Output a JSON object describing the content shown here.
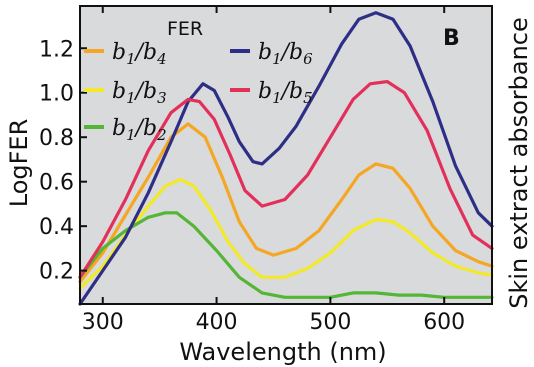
{
  "chart_data": {
    "type": "line",
    "panel_label": "B",
    "legend_title": "FER",
    "xlabel": "Wavelength (nm)",
    "ylabel": "LogFER",
    "right_label": "Skin extract absorbance",
    "xlim": [
      280,
      642
    ],
    "ylim": [
      0.05,
      1.39
    ],
    "x_ticks": [
      300,
      400,
      500,
      600
    ],
    "y_ticks": [
      0.2,
      0.4,
      0.6,
      0.8,
      1.0,
      1.2
    ],
    "y_tick_labels": [
      "0.2",
      "0.4",
      "0.6",
      "0.8",
      "1.0",
      "1.2"
    ],
    "background": "#d8dadb",
    "series": [
      {
        "name_num": "1",
        "name_den": "4",
        "color": "#f5a623",
        "legend": "top-left-1",
        "points": [
          [
            280,
            0.15
          ],
          [
            300,
            0.28
          ],
          [
            320,
            0.45
          ],
          [
            340,
            0.62
          ],
          [
            360,
            0.8
          ],
          [
            375,
            0.86
          ],
          [
            390,
            0.8
          ],
          [
            405,
            0.62
          ],
          [
            420,
            0.42
          ],
          [
            435,
            0.3
          ],
          [
            450,
            0.27
          ],
          [
            470,
            0.3
          ],
          [
            490,
            0.38
          ],
          [
            510,
            0.52
          ],
          [
            525,
            0.63
          ],
          [
            540,
            0.68
          ],
          [
            555,
            0.66
          ],
          [
            570,
            0.57
          ],
          [
            590,
            0.4
          ],
          [
            610,
            0.29
          ],
          [
            630,
            0.24
          ],
          [
            642,
            0.22
          ]
        ]
      },
      {
        "name_num": "1",
        "name_den": "3",
        "color": "#f2e928",
        "legend": "top-left-2",
        "points": [
          [
            280,
            0.12
          ],
          [
            300,
            0.22
          ],
          [
            320,
            0.36
          ],
          [
            340,
            0.49
          ],
          [
            355,
            0.58
          ],
          [
            368,
            0.61
          ],
          [
            380,
            0.58
          ],
          [
            395,
            0.47
          ],
          [
            410,
            0.33
          ],
          [
            425,
            0.23
          ],
          [
            440,
            0.17
          ],
          [
            460,
            0.17
          ],
          [
            480,
            0.21
          ],
          [
            500,
            0.28
          ],
          [
            520,
            0.38
          ],
          [
            540,
            0.43
          ],
          [
            555,
            0.42
          ],
          [
            570,
            0.37
          ],
          [
            590,
            0.28
          ],
          [
            610,
            0.22
          ],
          [
            630,
            0.19
          ],
          [
            642,
            0.18
          ]
        ]
      },
      {
        "name_num": "1",
        "name_den": "2",
        "color": "#55b535",
        "legend": "top-left-3",
        "points": [
          [
            280,
            0.17
          ],
          [
            300,
            0.3
          ],
          [
            320,
            0.38
          ],
          [
            340,
            0.44
          ],
          [
            355,
            0.46
          ],
          [
            365,
            0.46
          ],
          [
            380,
            0.4
          ],
          [
            400,
            0.29
          ],
          [
            420,
            0.17
          ],
          [
            440,
            0.1
          ],
          [
            460,
            0.08
          ],
          [
            480,
            0.08
          ],
          [
            500,
            0.08
          ],
          [
            520,
            0.1
          ],
          [
            540,
            0.1
          ],
          [
            560,
            0.09
          ],
          [
            580,
            0.09
          ],
          [
            600,
            0.08
          ],
          [
            620,
            0.08
          ],
          [
            642,
            0.08
          ]
        ]
      },
      {
        "name_num": "1",
        "name_den": "6",
        "color": "#2e2e86",
        "legend": "top-right-1",
        "points": [
          [
            280,
            0.05
          ],
          [
            300,
            0.2
          ],
          [
            320,
            0.35
          ],
          [
            340,
            0.55
          ],
          [
            360,
            0.78
          ],
          [
            375,
            0.96
          ],
          [
            388,
            1.04
          ],
          [
            398,
            1.01
          ],
          [
            410,
            0.89
          ],
          [
            420,
            0.78
          ],
          [
            432,
            0.69
          ],
          [
            440,
            0.68
          ],
          [
            455,
            0.75
          ],
          [
            470,
            0.85
          ],
          [
            490,
            1.03
          ],
          [
            510,
            1.22
          ],
          [
            525,
            1.33
          ],
          [
            540,
            1.36
          ],
          [
            555,
            1.33
          ],
          [
            570,
            1.21
          ],
          [
            590,
            0.96
          ],
          [
            610,
            0.67
          ],
          [
            630,
            0.46
          ],
          [
            642,
            0.4
          ]
        ]
      },
      {
        "name_num": "1",
        "name_den": "5",
        "color": "#e3305a",
        "legend": "top-right-2",
        "points": [
          [
            280,
            0.17
          ],
          [
            300,
            0.33
          ],
          [
            320,
            0.52
          ],
          [
            340,
            0.74
          ],
          [
            360,
            0.91
          ],
          [
            375,
            0.97
          ],
          [
            385,
            0.96
          ],
          [
            398,
            0.88
          ],
          [
            412,
            0.72
          ],
          [
            425,
            0.56
          ],
          [
            440,
            0.49
          ],
          [
            460,
            0.52
          ],
          [
            480,
            0.63
          ],
          [
            500,
            0.8
          ],
          [
            520,
            0.97
          ],
          [
            535,
            1.04
          ],
          [
            550,
            1.05
          ],
          [
            565,
            1.0
          ],
          [
            585,
            0.83
          ],
          [
            605,
            0.57
          ],
          [
            625,
            0.36
          ],
          [
            642,
            0.3
          ]
        ]
      }
    ]
  }
}
